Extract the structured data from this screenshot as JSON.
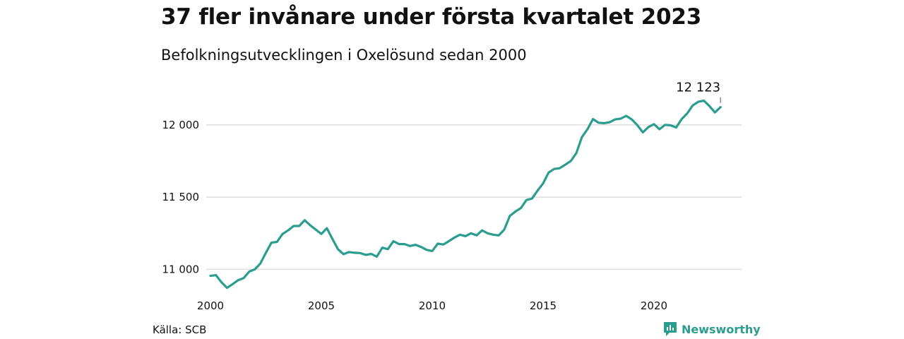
{
  "title": "37 fler invånare under första kvartalet 2023",
  "subtitle": "Befolkningsutvecklingen i Oxelösund sedan 2000",
  "source": "Källa: SCB",
  "brand": {
    "name": "Newsworthy",
    "icon": "newsworthy-logo-icon",
    "color": "#2a9d8f"
  },
  "colors": {
    "line": "#2a9d8f",
    "grid": "#dddddd"
  },
  "chart_data": {
    "type": "line",
    "title": "37 fler invånare under första kvartalet 2023",
    "subtitle": "Befolkningsutvecklingen i Oxelösund sedan 2000",
    "xlabel": "",
    "ylabel": "",
    "xlim": [
      2000,
      2023.25
    ],
    "ylim": [
      10870,
      12180
    ],
    "x_ticks": [
      2000,
      2005,
      2010,
      2015,
      2020
    ],
    "y_ticks": [
      {
        "value": 11000,
        "label": "11 000"
      },
      {
        "value": 11500,
        "label": "11 500"
      },
      {
        "value": 12000,
        "label": "12 000"
      }
    ],
    "grid": "horizontal",
    "end_label": "12 123",
    "series": [
      {
        "x": [
          2000,
          2000.25,
          2000.5,
          2000.75,
          2001,
          2001.25,
          2001.5,
          2001.75,
          2002,
          2002.25,
          2002.5,
          2002.75,
          2003,
          2003.25,
          2003.5,
          2003.75,
          2004,
          2004.25,
          2004.5,
          2004.75,
          2005,
          2005.25,
          2005.5,
          2005.75,
          2006,
          2006.25,
          2006.5,
          2006.75,
          2007,
          2007.25,
          2007.5,
          2007.75,
          2008,
          2008.25,
          2008.5,
          2008.75,
          2009,
          2009.25,
          2009.5,
          2009.75,
          2010,
          2010.25,
          2010.5,
          2010.75,
          2011,
          2011.25,
          2011.5,
          2011.75,
          2012,
          2012.25,
          2012.5,
          2012.75,
          2013,
          2013.25,
          2013.5,
          2013.75,
          2014,
          2014.25,
          2014.5,
          2014.75,
          2015,
          2015.25,
          2015.5,
          2015.75,
          2016,
          2016.25,
          2016.5,
          2016.75,
          2017,
          2017.25,
          2017.5,
          2017.75,
          2018,
          2018.25,
          2018.5,
          2018.75,
          2019,
          2019.25,
          2019.5,
          2019.75,
          2020,
          2020.25,
          2020.5,
          2020.75,
          2021,
          2021.25,
          2021.5,
          2021.75,
          2022,
          2022.25,
          2022.5,
          2022.75,
          2023
        ],
        "values": [
          10955,
          10960,
          10910,
          10872,
          10898,
          10925,
          10940,
          10985,
          11000,
          11040,
          11115,
          11185,
          11190,
          11245,
          11270,
          11300,
          11300,
          11340,
          11305,
          11275,
          11245,
          11285,
          11210,
          11140,
          11105,
          11120,
          11115,
          11113,
          11100,
          11107,
          11088,
          11150,
          11140,
          11195,
          11175,
          11175,
          11162,
          11170,
          11155,
          11135,
          11127,
          11178,
          11172,
          11195,
          11220,
          11240,
          11230,
          11250,
          11235,
          11270,
          11250,
          11240,
          11235,
          11275,
          11370,
          11400,
          11425,
          11480,
          11490,
          11545,
          11595,
          11670,
          11695,
          11700,
          11725,
          11750,
          11805,
          11915,
          11970,
          12040,
          12015,
          12012,
          12018,
          12038,
          12043,
          12062,
          12038,
          11998,
          11948,
          11985,
          12005,
          11970,
          12000,
          11997,
          11982,
          12040,
          12080,
          12135,
          12160,
          12168,
          12130,
          12086,
          12123
        ]
      }
    ]
  }
}
